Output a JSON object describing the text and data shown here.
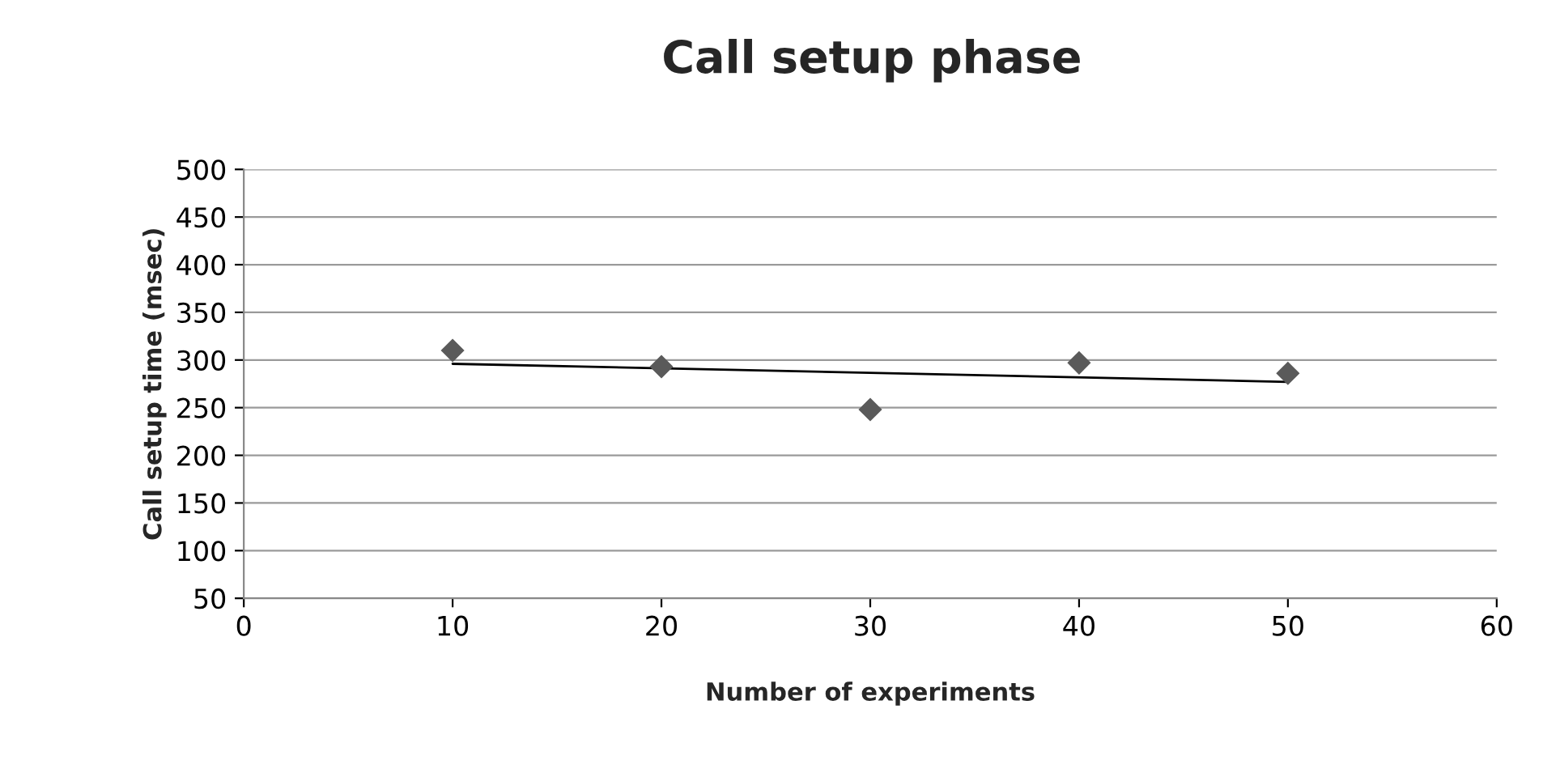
{
  "chart_data": {
    "type": "scatter",
    "title": "Call setup phase",
    "xlabel": "Number of experiments",
    "ylabel": "Call setup time (msec)",
    "x": [
      10,
      20,
      30,
      40,
      50
    ],
    "series": [
      {
        "color": "#5a5a5a",
        "marker": "diamond",
        "values": [
          310,
          293,
          248,
          297,
          286
        ]
      },
      {
        "type": "line",
        "color": "#000000",
        "x": [
          10,
          50
        ],
        "values": [
          296,
          277
        ]
      }
    ],
    "xlim": [
      0,
      60
    ],
    "xticks": [
      0,
      10,
      20,
      30,
      40,
      50,
      60
    ],
    "ylim": [
      50,
      500
    ],
    "yticks": [
      50,
      100,
      150,
      200,
      250,
      300,
      350,
      400,
      450,
      500
    ],
    "grid": "y",
    "legend": false
  }
}
